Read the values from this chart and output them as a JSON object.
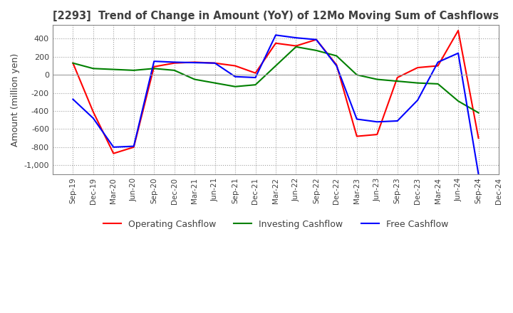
{
  "title": "[2293]  Trend of Change in Amount (YoY) of 12Mo Moving Sum of Cashflows",
  "ylabel": "Amount (million yen)",
  "x_labels": [
    "Sep-19",
    "Dec-19",
    "Mar-20",
    "Jun-20",
    "Sep-20",
    "Dec-20",
    "Mar-21",
    "Jun-21",
    "Sep-21",
    "Dec-21",
    "Mar-22",
    "Jun-22",
    "Sep-22",
    "Dec-22",
    "Mar-23",
    "Jun-23",
    "Sep-23",
    "Dec-23",
    "Mar-24",
    "Jun-24",
    "Sep-24",
    "Dec-24"
  ],
  "operating": [
    130,
    -410,
    -870,
    -800,
    90,
    130,
    140,
    130,
    100,
    20,
    350,
    320,
    390,
    110,
    -680,
    -660,
    -30,
    80,
    100,
    490,
    -700,
    null
  ],
  "investing": [
    130,
    70,
    60,
    50,
    70,
    50,
    -50,
    -90,
    -130,
    -110,
    100,
    310,
    270,
    210,
    0,
    -50,
    -70,
    -90,
    -100,
    -290,
    -420,
    null
  ],
  "free": [
    -270,
    -480,
    -800,
    -790,
    150,
    140,
    135,
    130,
    -20,
    -30,
    440,
    410,
    390,
    100,
    -490,
    -520,
    -510,
    -280,
    140,
    240,
    -1100,
    null
  ],
  "ylim": [
    -1100,
    550
  ],
  "yticks": [
    -1000,
    -800,
    -600,
    -400,
    -200,
    0,
    200,
    400
  ],
  "operating_color": "#ff0000",
  "investing_color": "#008000",
  "free_color": "#0000ff",
  "bg_color": "#ffffff",
  "grid_color": "#a0a0a0",
  "title_color": "#404040"
}
